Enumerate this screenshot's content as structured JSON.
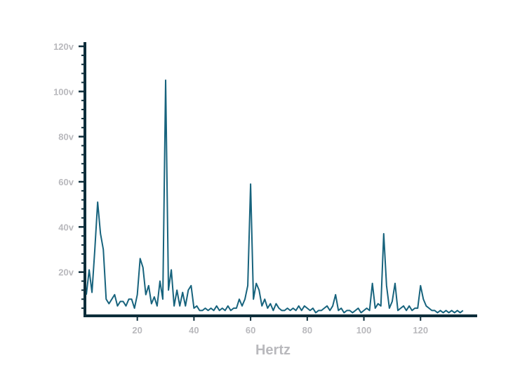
{
  "chart_data": {
    "type": "line",
    "x_label": "Hertz",
    "x": [
      2,
      3,
      4,
      5,
      6,
      7,
      8,
      9,
      10,
      11,
      12,
      13,
      14,
      15,
      16,
      17,
      18,
      19,
      20,
      21,
      22,
      23,
      24,
      25,
      26,
      27,
      28,
      29,
      30,
      31,
      32,
      33,
      34,
      35,
      36,
      37,
      38,
      39,
      40,
      41,
      42,
      43,
      44,
      45,
      46,
      47,
      48,
      49,
      50,
      51,
      52,
      53,
      54,
      55,
      56,
      57,
      58,
      59,
      60,
      61,
      62,
      63,
      64,
      65,
      66,
      67,
      68,
      69,
      70,
      71,
      72,
      73,
      74,
      75,
      76,
      77,
      78,
      79,
      80,
      81,
      82,
      83,
      84,
      85,
      86,
      87,
      88,
      89,
      90,
      91,
      92,
      93,
      94,
      95,
      96,
      97,
      98,
      99,
      100,
      101,
      102,
      103,
      104,
      105,
      106,
      107,
      108,
      109,
      110,
      111,
      112,
      113,
      114,
      115,
      116,
      117,
      118,
      119,
      120,
      121,
      122,
      123,
      124,
      125,
      126,
      127,
      128,
      129,
      130,
      131,
      132,
      133,
      134,
      135
    ],
    "series": [
      {
        "color": "#17637d",
        "values": [
          10,
          21,
          11,
          30,
          51,
          37,
          30,
          8,
          6,
          8,
          10,
          5,
          7,
          7,
          5,
          8,
          8,
          4,
          10,
          26,
          22,
          10,
          14,
          6,
          9,
          5,
          16,
          8,
          105,
          12,
          21,
          5,
          12,
          5,
          11,
          5,
          12,
          14,
          4,
          5,
          3,
          3,
          4,
          3,
          4,
          3,
          5,
          3,
          4,
          3,
          5,
          3,
          4,
          4,
          8,
          5,
          8,
          14,
          59,
          8,
          15,
          12,
          5,
          8,
          4,
          6,
          3,
          6,
          4,
          3,
          3,
          4,
          3,
          4,
          3,
          5,
          3,
          5,
          4,
          3,
          4,
          2,
          3,
          3,
          4,
          5,
          3,
          5,
          10,
          3,
          4,
          2,
          3,
          3,
          2,
          3,
          4,
          2,
          3,
          4,
          3,
          15,
          4,
          6,
          5,
          37,
          14,
          4,
          7,
          15,
          3,
          4,
          5,
          3,
          5,
          3,
          4,
          4,
          14,
          8,
          5,
          4,
          3,
          3,
          2,
          3,
          2,
          3,
          2,
          3,
          2,
          3,
          2,
          3
        ]
      }
    ],
    "xlim": [
      1.5,
      140
    ],
    "ylim": [
      0,
      120
    ],
    "xticks": [
      20,
      40,
      60,
      80,
      100,
      120
    ],
    "yticks": [
      {
        "value": 20,
        "label": "20v"
      },
      {
        "value": 40,
        "label": "40v"
      },
      {
        "value": 60,
        "label": "60v"
      },
      {
        "value": 80,
        "label": "80v"
      },
      {
        "value": 100,
        "label": "100v"
      },
      {
        "value": 120,
        "label": "120v"
      }
    ],
    "yminorticks": [
      4,
      8,
      12,
      16,
      24,
      28,
      32,
      36,
      44,
      48,
      52,
      56,
      64,
      68,
      72,
      76,
      84,
      88,
      92,
      96,
      104,
      108,
      112,
      116
    ],
    "axis_color": "#0d2d3a"
  }
}
